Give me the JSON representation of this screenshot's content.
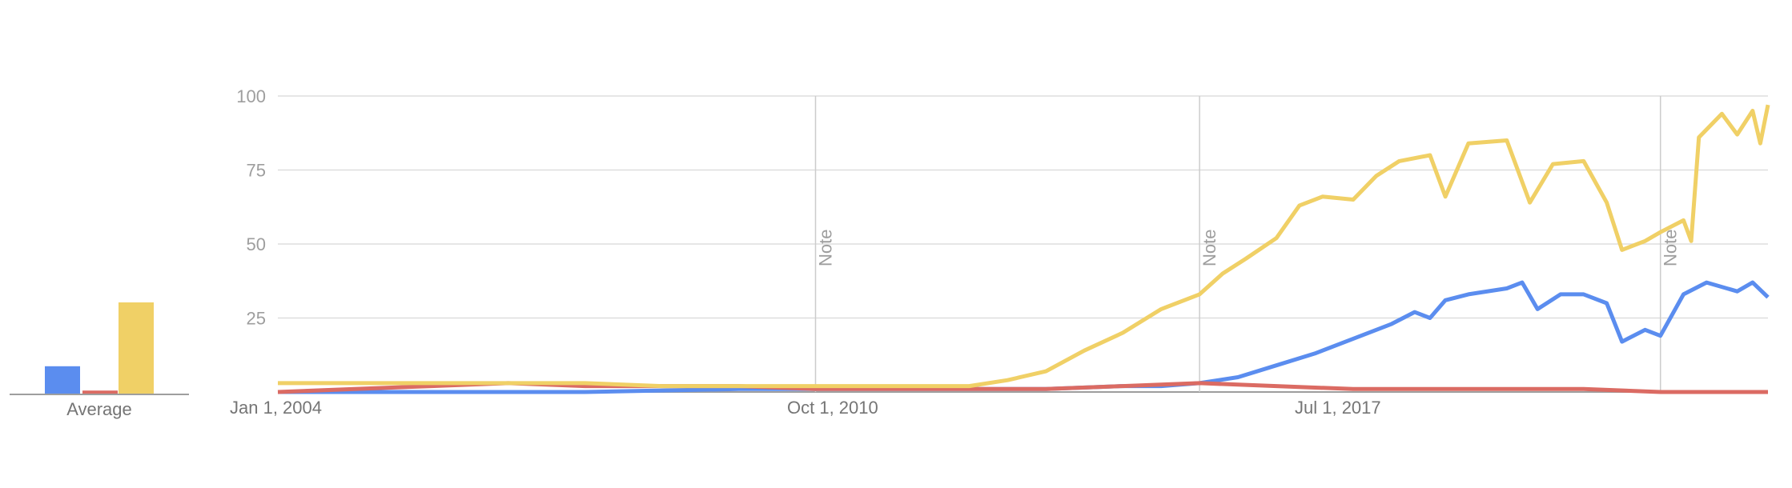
{
  "chart_data": {
    "type": "line",
    "x": [
      "Jan 1, 2004",
      "Oct 1, 2010",
      "Jul 1, 2017"
    ],
    "x_range": [
      "2004-01",
      "2023-05"
    ],
    "ylim": [
      0,
      100
    ],
    "y_ticks": [
      100,
      75,
      50,
      25
    ],
    "notes": [
      {
        "date": "2011-01",
        "label": "Note"
      },
      {
        "date": "2016-01",
        "label": "Note"
      },
      {
        "date": "2022-01",
        "label": "Note"
      }
    ],
    "average_label": "Average",
    "averages": [
      9,
      1,
      30
    ],
    "series": [
      {
        "color": "#5b8def",
        "values": [
          [
            2004,
            0
          ],
          [
            2006,
            0
          ],
          [
            2008,
            0
          ],
          [
            2010,
            1
          ],
          [
            2012,
            1
          ],
          [
            2014,
            1
          ],
          [
            2015,
            2
          ],
          [
            2015.5,
            2
          ],
          [
            2016,
            3
          ],
          [
            2016.5,
            5
          ],
          [
            2017,
            9
          ],
          [
            2017.5,
            13
          ],
          [
            2018,
            18
          ],
          [
            2018.5,
            23
          ],
          [
            2018.8,
            27
          ],
          [
            2019,
            25
          ],
          [
            2019.2,
            31
          ],
          [
            2019.5,
            33
          ],
          [
            2020,
            35
          ],
          [
            2020.2,
            37
          ],
          [
            2020.4,
            28
          ],
          [
            2020.7,
            33
          ],
          [
            2021,
            33
          ],
          [
            2021.3,
            30
          ],
          [
            2021.5,
            17
          ],
          [
            2021.8,
            21
          ],
          [
            2022,
            19
          ],
          [
            2022.3,
            33
          ],
          [
            2022.6,
            37
          ],
          [
            2023,
            34
          ],
          [
            2023.2,
            37
          ],
          [
            2023.4,
            32
          ]
        ]
      },
      {
        "color": "#db6b63",
        "values": [
          [
            2004,
            0
          ],
          [
            2005,
            1
          ],
          [
            2006,
            2
          ],
          [
            2007,
            3
          ],
          [
            2008,
            2
          ],
          [
            2009,
            2
          ],
          [
            2010,
            2
          ],
          [
            2011,
            1
          ],
          [
            2012,
            1
          ],
          [
            2013,
            1
          ],
          [
            2014,
            1
          ],
          [
            2015,
            2
          ],
          [
            2016,
            3
          ],
          [
            2017,
            2
          ],
          [
            2018,
            1
          ],
          [
            2019,
            1
          ],
          [
            2020,
            1
          ],
          [
            2021,
            1
          ],
          [
            2022,
            0
          ],
          [
            2023,
            0
          ],
          [
            2023.4,
            0
          ]
        ]
      },
      {
        "color": "#f0d066",
        "values": [
          [
            2004,
            3
          ],
          [
            2005,
            3
          ],
          [
            2006,
            3
          ],
          [
            2007,
            3
          ],
          [
            2008,
            3
          ],
          [
            2009,
            2
          ],
          [
            2010,
            2
          ],
          [
            2011,
            2
          ],
          [
            2012,
            2
          ],
          [
            2013,
            2
          ],
          [
            2013.5,
            4
          ],
          [
            2014,
            7
          ],
          [
            2014.5,
            14
          ],
          [
            2015,
            20
          ],
          [
            2015.5,
            28
          ],
          [
            2016,
            33
          ],
          [
            2016.3,
            40
          ],
          [
            2016.6,
            45
          ],
          [
            2017,
            52
          ],
          [
            2017.3,
            63
          ],
          [
            2017.6,
            66
          ],
          [
            2018,
            65
          ],
          [
            2018.3,
            73
          ],
          [
            2018.6,
            78
          ],
          [
            2019,
            80
          ],
          [
            2019.2,
            66
          ],
          [
            2019.5,
            84
          ],
          [
            2020,
            85
          ],
          [
            2020.3,
            64
          ],
          [
            2020.6,
            77
          ],
          [
            2021,
            78
          ],
          [
            2021.3,
            64
          ],
          [
            2021.5,
            48
          ],
          [
            2021.8,
            51
          ],
          [
            2022,
            54
          ],
          [
            2022.3,
            58
          ],
          [
            2022.4,
            51
          ],
          [
            2022.5,
            86
          ],
          [
            2022.8,
            94
          ],
          [
            2023,
            87
          ],
          [
            2023.2,
            95
          ],
          [
            2023.3,
            84
          ],
          [
            2023.4,
            97
          ]
        ]
      }
    ]
  }
}
